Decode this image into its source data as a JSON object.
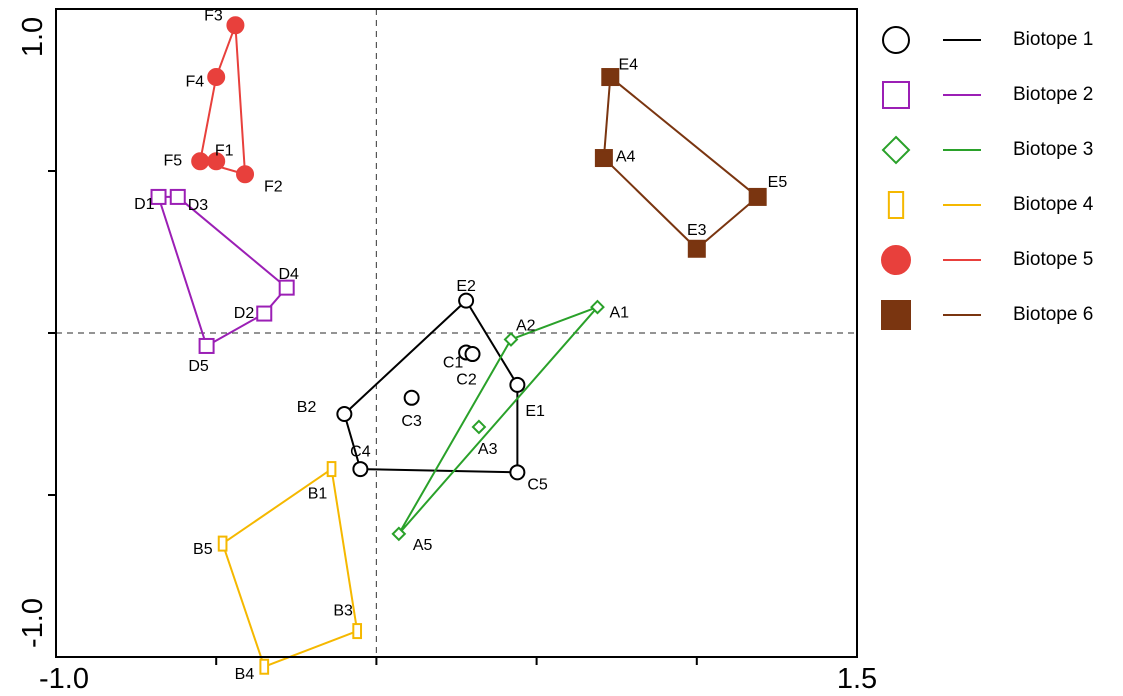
{
  "chart_data": {
    "type": "scatter",
    "title": "",
    "xlabel": "",
    "ylabel": "",
    "xlim": [
      -1.0,
      1.5
    ],
    "ylim": [
      -1.0,
      1.0
    ],
    "x_tick_labels": [
      "-1.0",
      "1.5"
    ],
    "y_tick_labels": [
      "-1.0",
      "1.0"
    ],
    "reference_lines": {
      "x": 0,
      "y": 0,
      "style": "dashed"
    },
    "grid": false,
    "legend_position": "right",
    "series": [
      {
        "name": "Biotope 1",
        "marker": "circle-open",
        "color": "#000000",
        "points": [
          {
            "label": "B2",
            "x": -0.1,
            "y": -0.25
          },
          {
            "label": "E2",
            "x": 0.28,
            "y": 0.1
          },
          {
            "label": "E1",
            "x": 0.44,
            "y": -0.16
          },
          {
            "label": "C5",
            "x": 0.44,
            "y": -0.43
          },
          {
            "label": "C4",
            "x": -0.05,
            "y": -0.42
          },
          {
            "label": "C1",
            "x": 0.28,
            "y": -0.06
          },
          {
            "label": "C2",
            "x": 0.3,
            "y": -0.065
          },
          {
            "label": "C3",
            "x": 0.11,
            "y": -0.2
          }
        ],
        "hull": [
          "B2",
          "E2",
          "E1",
          "C5",
          "C4"
        ]
      },
      {
        "name": "Biotope 2",
        "marker": "square-open",
        "color": "#9b1fb5",
        "points": [
          {
            "label": "D1",
            "x": -0.68,
            "y": 0.42
          },
          {
            "label": "D3",
            "x": -0.62,
            "y": 0.42
          },
          {
            "label": "D4",
            "x": -0.28,
            "y": 0.14
          },
          {
            "label": "D2",
            "x": -0.35,
            "y": 0.06
          },
          {
            "label": "D5",
            "x": -0.53,
            "y": -0.04
          }
        ],
        "hull": [
          "D1",
          "D3",
          "D4",
          "D2",
          "D5"
        ]
      },
      {
        "name": "Biotope 3",
        "marker": "diamond-open",
        "color": "#2aa12a",
        "points": [
          {
            "label": "A1",
            "x": 0.69,
            "y": 0.08
          },
          {
            "label": "A2",
            "x": 0.42,
            "y": -0.02
          },
          {
            "label": "A3",
            "x": 0.32,
            "y": -0.29
          },
          {
            "label": "A5",
            "x": 0.07,
            "y": -0.62
          }
        ],
        "hull": [
          "A1",
          "A2",
          "A5"
        ]
      },
      {
        "name": "Biotope 4",
        "marker": "rect-open",
        "color": "#f5b800",
        "points": [
          {
            "label": "B1",
            "x": -0.14,
            "y": -0.42
          },
          {
            "label": "B5",
            "x": -0.48,
            "y": -0.65
          },
          {
            "label": "B4",
            "x": -0.35,
            "y": -1.03
          },
          {
            "label": "B3",
            "x": -0.06,
            "y": -0.92
          }
        ],
        "hull": [
          "B1",
          "B5",
          "B4",
          "B3"
        ]
      },
      {
        "name": "Biotope 5",
        "marker": "circle-filled",
        "color": "#e8403c",
        "points": [
          {
            "label": "F3",
            "x": -0.44,
            "y": 0.95
          },
          {
            "label": "F4",
            "x": -0.5,
            "y": 0.79
          },
          {
            "label": "F5",
            "x": -0.55,
            "y": 0.53
          },
          {
            "label": "F1",
            "x": -0.5,
            "y": 0.53
          },
          {
            "label": "F2",
            "x": -0.41,
            "y": 0.49
          }
        ],
        "hull": [
          "F3",
          "F4",
          "F5",
          "F2"
        ]
      },
      {
        "name": "Biotope 6",
        "marker": "square-filled",
        "color": "#7a3510",
        "points": [
          {
            "label": "E4",
            "x": 0.73,
            "y": 0.79
          },
          {
            "label": "A4",
            "x": 0.71,
            "y": 0.54
          },
          {
            "label": "E5",
            "x": 1.19,
            "y": 0.42
          },
          {
            "label": "E3",
            "x": 1.0,
            "y": 0.26
          }
        ],
        "hull": [
          "E4",
          "E5",
          "E3",
          "A4"
        ]
      }
    ]
  }
}
